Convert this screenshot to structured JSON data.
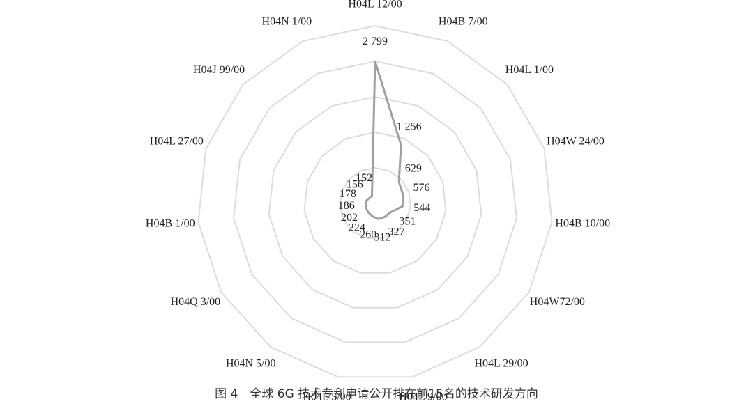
{
  "chart_data": {
    "type": "radar",
    "title": "图 4　全球 6G 技术专利申请公开排在前15名的技术研发方向",
    "categories": [
      "H04L 12/00",
      "H04B 7/00",
      "H04L 1/00",
      "H04W 24/00",
      "H04B 10/00",
      "H04W72/00",
      "H04L 29/00",
      "H04L 9/00",
      "H04L 5/00",
      "H04N 5/00",
      "H04Q 3/00",
      "H04B 1/00",
      "H04L 27/00",
      "H04J 99/00",
      "H04N 1/00"
    ],
    "values": [
      2799,
      1256,
      629,
      576,
      544,
      351,
      327,
      312,
      260,
      224,
      202,
      186,
      178,
      156,
      152
    ],
    "value_labels": [
      "2 799",
      "1 256",
      "629",
      "576",
      "544",
      "351",
      "327",
      "312",
      "260",
      "224",
      "202",
      "186",
      "178",
      "156",
      "152"
    ],
    "color": "#a0a0a0",
    "ylim": [
      0,
      3500
    ],
    "rings": 5,
    "grid": true
  }
}
